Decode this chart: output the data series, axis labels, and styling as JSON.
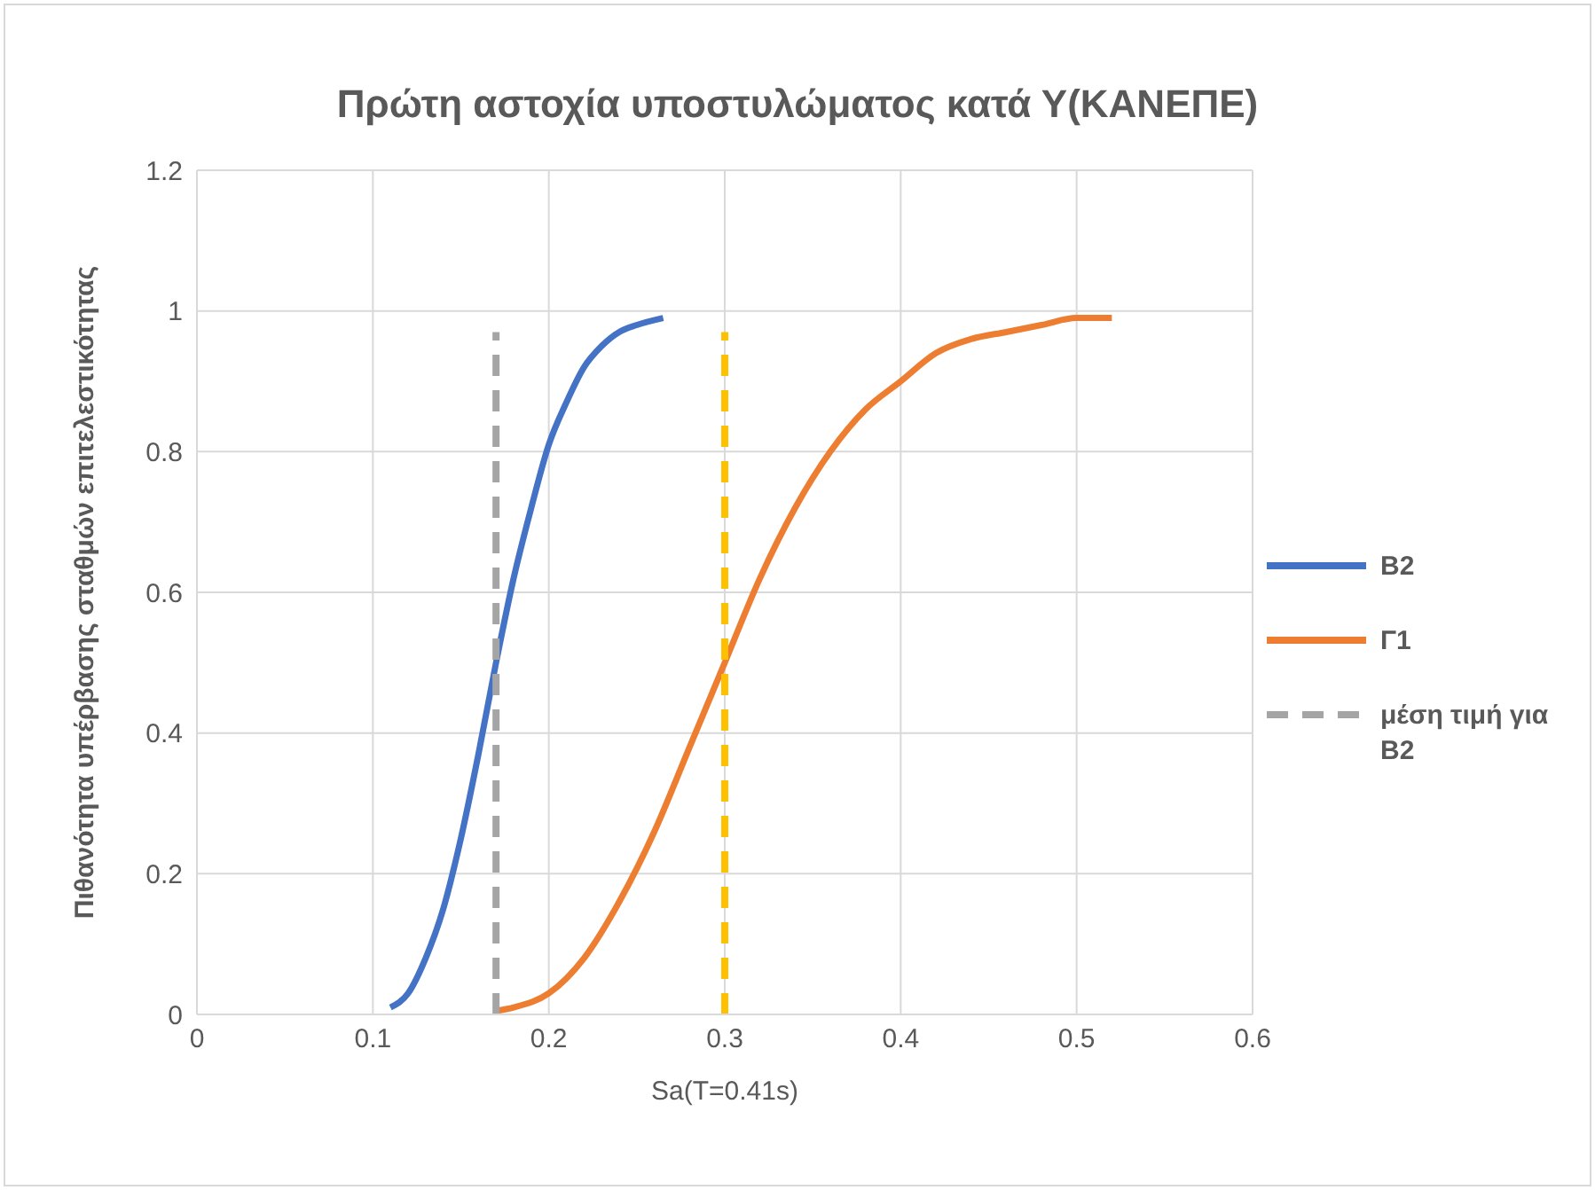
{
  "chart_data": {
    "type": "line",
    "title": "Πρώτη αστοχία υποστυλώματος κατά Υ(ΚΑΝΕΠΕ)",
    "xlabel": "Sa(T=0.41s)",
    "ylabel": "Πιθανότητα υπέρβασης σταθμών επιτελεστικότητας",
    "xlim": [
      0,
      0.6
    ],
    "xticks": [
      0,
      0.1,
      0.2,
      0.3,
      0.4,
      0.5,
      0.6
    ],
    "ylim": [
      0,
      1.2
    ],
    "yticks": [
      0,
      0.2,
      0.4,
      0.6,
      0.8,
      1,
      1.2
    ],
    "grid": true,
    "legend": "right",
    "marker": "none",
    "series": [
      {
        "name": "B2",
        "color": "#4472c4",
        "line_style": "solid",
        "x": [
          0.11,
          0.12,
          0.13,
          0.14,
          0.15,
          0.16,
          0.17,
          0.18,
          0.19,
          0.2,
          0.21,
          0.22,
          0.23,
          0.24,
          0.25,
          0.265
        ],
        "values": [
          0.01,
          0.03,
          0.08,
          0.15,
          0.25,
          0.37,
          0.5,
          0.62,
          0.72,
          0.81,
          0.87,
          0.92,
          0.95,
          0.97,
          0.98,
          0.99
        ]
      },
      {
        "name": "Γ1",
        "color": "#ed7d31",
        "line_style": "solid",
        "x": [
          0.17,
          0.18,
          0.2,
          0.22,
          0.24,
          0.26,
          0.28,
          0.3,
          0.32,
          0.34,
          0.36,
          0.38,
          0.4,
          0.42,
          0.44,
          0.46,
          0.48,
          0.5,
          0.52
        ],
        "values": [
          0.005,
          0.01,
          0.03,
          0.08,
          0.16,
          0.26,
          0.38,
          0.5,
          0.62,
          0.72,
          0.8,
          0.86,
          0.9,
          0.94,
          0.96,
          0.97,
          0.98,
          0.99,
          0.99
        ]
      },
      {
        "name": "μέση τιμή για B2",
        "color": "#a5a5a5",
        "line_style": "dashed",
        "x": [
          0.17,
          0.17
        ],
        "values": [
          0,
          0.97
        ]
      },
      {
        "color": "#ffc000",
        "line_style": "dashed",
        "x": [
          0.3,
          0.3
        ],
        "values": [
          0,
          0.97
        ]
      }
    ]
  }
}
